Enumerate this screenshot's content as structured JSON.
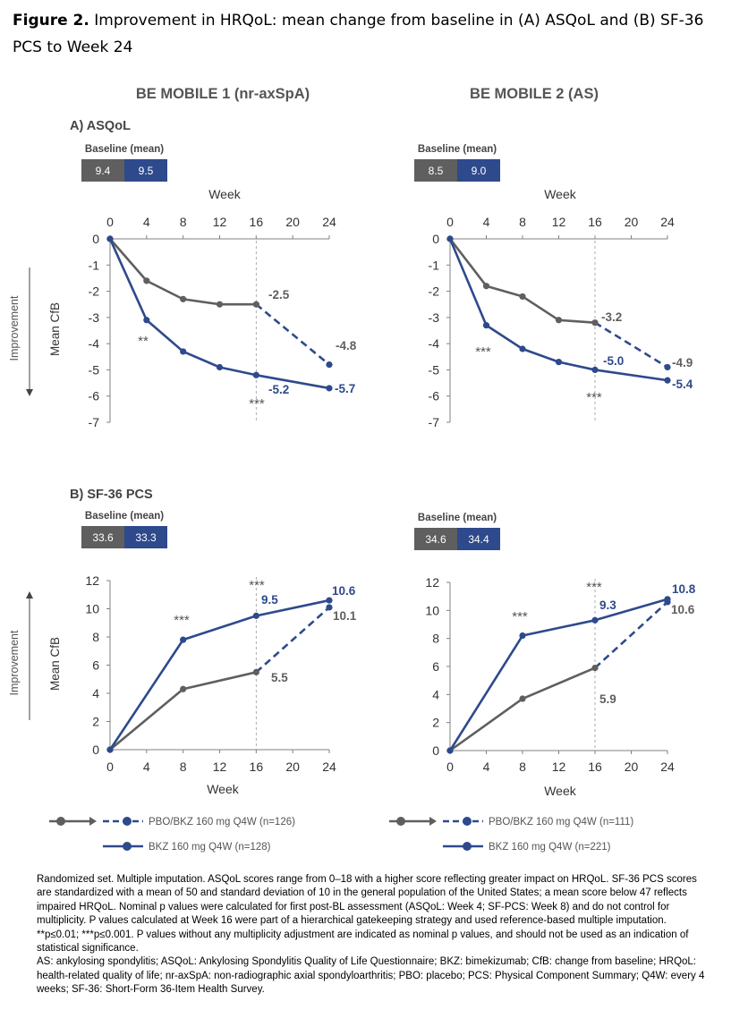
{
  "figure": {
    "label": "Figure 2.",
    "title": "Improvement in HRQoL: mean change from baseline in (A) ASQoL and (B) SF-36 PCS to Week 24"
  },
  "studies": [
    "BE MOBILE 1 (nr-axSpA)",
    "BE MOBILE 2 (AS)"
  ],
  "colors": {
    "pbo": "#5f5f5f",
    "bkz": "#2e4a8c",
    "grid": "#999999"
  },
  "baseline_label": "Baseline (mean)",
  "improvement_label": "Improvement",
  "chart_data": [
    {
      "id": "A1",
      "type": "line",
      "panel_label": "A) ASQoL",
      "study": "BE MOBILE 1 (nr-axSpA)",
      "baseline": [
        "9.4",
        "9.5"
      ],
      "xlabel": "Week",
      "ylabel": "Mean CfB",
      "xlabel_position": "top",
      "x_ticks": [
        0,
        4,
        8,
        12,
        16,
        20,
        24
      ],
      "y_ticks": [
        0,
        -1,
        -2,
        -3,
        -4,
        -5,
        -6,
        -7
      ],
      "ylim": [
        -7,
        0
      ],
      "series": [
        {
          "name": "PBO/BKZ 160 mg Q4W (n=126)",
          "x": [
            0,
            4,
            8,
            12,
            16,
            24
          ],
          "y": [
            0,
            -1.6,
            -2.3,
            -2.5,
            -2.5,
            -4.8
          ],
          "dashed_from_week": 16
        },
        {
          "name": "BKZ 160 mg Q4W (n=128)",
          "x": [
            0,
            4,
            8,
            12,
            16,
            24
          ],
          "y": [
            0,
            -3.1,
            -4.3,
            -4.9,
            -5.2,
            -5.7
          ]
        }
      ],
      "value_labels": [
        "-2.5",
        "-4.8",
        "-5.2",
        "-5.7"
      ],
      "significance": [
        "**",
        "***"
      ]
    },
    {
      "id": "A2",
      "type": "line",
      "panel_label": "",
      "study": "BE MOBILE 2 (AS)",
      "baseline": [
        "8.5",
        "9.0"
      ],
      "xlabel": "Week",
      "ylabel": "",
      "xlabel_position": "top",
      "x_ticks": [
        0,
        4,
        8,
        12,
        16,
        20,
        24
      ],
      "y_ticks": [
        0,
        -1,
        -2,
        -3,
        -4,
        -5,
        -6,
        -7
      ],
      "ylim": [
        -7,
        0
      ],
      "series": [
        {
          "name": "PBO/BKZ 160 mg Q4W (n=111)",
          "x": [
            0,
            4,
            8,
            12,
            16,
            24
          ],
          "y": [
            0,
            -1.8,
            -2.2,
            -3.1,
            -3.2,
            -4.9
          ],
          "dashed_from_week": 16
        },
        {
          "name": "BKZ 160 mg Q4W (n=221)",
          "x": [
            0,
            4,
            8,
            12,
            16,
            24
          ],
          "y": [
            0,
            -3.3,
            -4.2,
            -4.7,
            -5.0,
            -5.4
          ]
        }
      ],
      "value_labels": [
        "-3.2",
        "-4.9",
        "-5.0",
        "-5.4"
      ],
      "significance": [
        "***",
        "***"
      ]
    },
    {
      "id": "B1",
      "type": "line",
      "panel_label": "B) SF-36 PCS",
      "study": "BE MOBILE 1 (nr-axSpA)",
      "baseline": [
        "33.6",
        "33.3"
      ],
      "xlabel": "Week",
      "ylabel": "Mean CfB",
      "xlabel_position": "bottom",
      "x_ticks": [
        0,
        4,
        8,
        12,
        16,
        20,
        24
      ],
      "y_ticks": [
        0,
        2,
        4,
        6,
        8,
        10,
        12
      ],
      "ylim": [
        0,
        12
      ],
      "series": [
        {
          "name": "PBO/BKZ 160 mg Q4W (n=126)",
          "x": [
            0,
            8,
            16,
            24
          ],
          "y": [
            0,
            4.3,
            5.5,
            10.1
          ],
          "dashed_from_week": 16
        },
        {
          "name": "BKZ 160 mg Q4W (n=128)",
          "x": [
            0,
            8,
            16,
            24
          ],
          "y": [
            0,
            7.8,
            9.5,
            10.6
          ]
        }
      ],
      "value_labels": [
        "5.5",
        "10.1",
        "9.5",
        "10.6"
      ],
      "significance": [
        "***",
        "***"
      ]
    },
    {
      "id": "B2",
      "type": "line",
      "panel_label": "",
      "study": "BE MOBILE 2 (AS)",
      "baseline": [
        "34.6",
        "34.4"
      ],
      "xlabel": "Week",
      "ylabel": "",
      "xlabel_position": "bottom",
      "x_ticks": [
        0,
        4,
        8,
        12,
        16,
        20,
        24
      ],
      "y_ticks": [
        0,
        2,
        4,
        6,
        8,
        10,
        12
      ],
      "ylim": [
        0,
        12
      ],
      "series": [
        {
          "name": "PBO/BKZ 160 mg Q4W (n=111)",
          "x": [
            0,
            8,
            16,
            24
          ],
          "y": [
            0,
            3.7,
            5.9,
            10.6
          ],
          "dashed_from_week": 16
        },
        {
          "name": "BKZ 160 mg Q4W (n=221)",
          "x": [
            0,
            8,
            16,
            24
          ],
          "y": [
            0,
            8.2,
            9.3,
            10.8
          ]
        }
      ],
      "value_labels": [
        "5.9",
        "10.6",
        "9.3",
        "10.8"
      ],
      "significance": [
        "***",
        "***"
      ]
    }
  ],
  "legends": [
    {
      "pbo": "PBO/BKZ 160 mg Q4W (n=126)",
      "bkz": "BKZ 160 mg Q4W (n=128)"
    },
    {
      "pbo": "PBO/BKZ 160 mg Q4W (n=111)",
      "bkz": "BKZ 160 mg Q4W (n=221)"
    }
  ],
  "footnote": [
    "Randomized set. Multiple imputation. ASQoL scores range from 0–18 with a higher score reflecting greater impact on HRQoL. SF-36 PCS scores are standardized with a mean of 50 and standard deviation of 10 in the general population of the United States; a mean score below 47 reflects impaired HRQoL. Nominal p values were calculated for first post-BL assessment (ASQoL: Week 4; SF-PCS: Week 8) and do not control for multiplicity. P values calculated at Week 16 were part of a hierarchical gatekeeping strategy and used reference-based multiple imputation. **p≤0.01; ***p≤0.001. P values without any multiplicity adjustment are indicated as nominal p values, and should not be used as an indication of statistical significance.",
    "AS: ankylosing spondylitis; ASQoL: Ankylosing Spondylitis Quality of Life Questionnaire; BKZ: bimekizumab; CfB: change from baseline; HRQoL: health-related quality of life; nr-axSpA: non-radiographic axial spondyloarthritis; PBO: placebo; PCS: Physical Component Summary; Q4W: every 4 weeks; SF-36: Short-Form 36-Item Health Survey."
  ]
}
